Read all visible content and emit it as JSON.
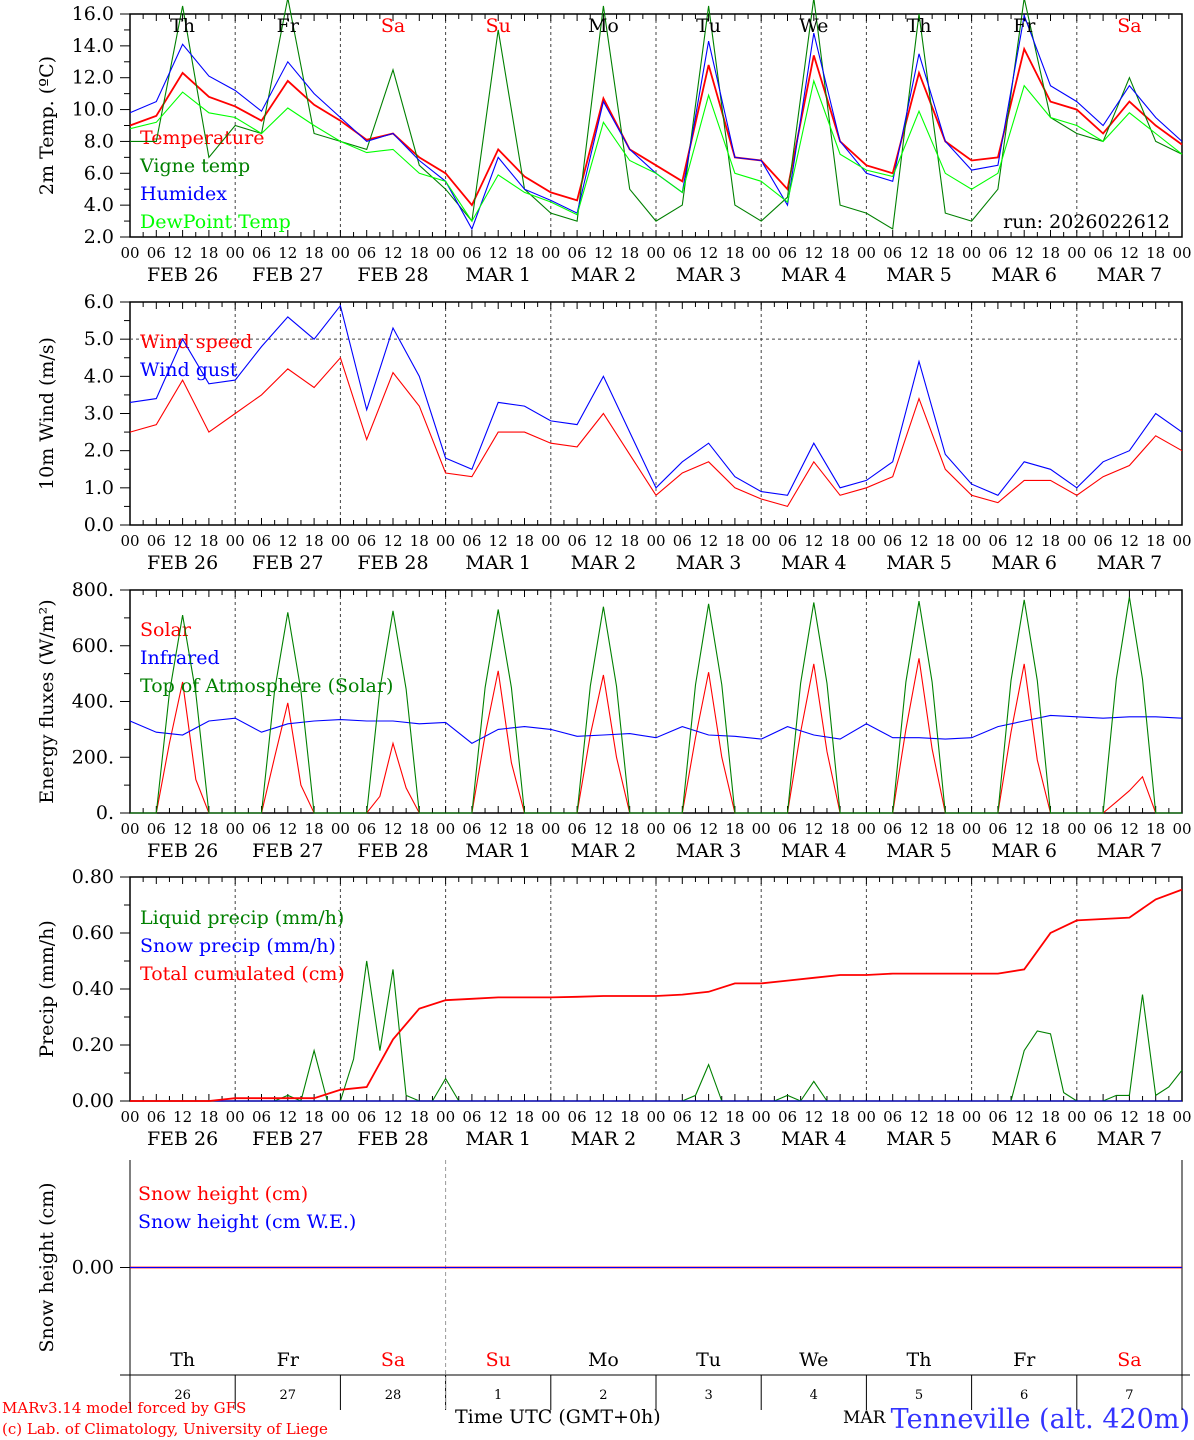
{
  "chart_data": [
    {
      "type": "line",
      "id": "temp",
      "ylabel": "2m Temp. (ºC)",
      "ylim": [
        2,
        16
      ],
      "yticks": [
        2,
        4,
        6,
        8,
        10,
        12,
        14,
        16
      ],
      "ytick_labels": [
        "2.0",
        "4.0",
        "6.0",
        "8.0",
        "10.0",
        "12.0",
        "14.0",
        "16.0"
      ],
      "annotation": "run: 2026022612",
      "series": [
        {
          "name": "Temperature",
          "color": "#ff0000",
          "step_h": 6,
          "values": [
            9.0,
            9.6,
            12.3,
            10.8,
            10.2,
            9.3,
            11.8,
            10.3,
            9.3,
            8.1,
            8.5,
            7.0,
            6.0,
            4.0,
            7.5,
            5.8,
            4.8,
            4.3,
            10.7,
            7.5,
            6.5,
            5.5,
            12.8,
            7.0,
            6.8,
            5.0,
            13.4,
            8.0,
            6.5,
            6.0,
            12.3,
            8.0,
            6.8,
            7.0,
            13.8,
            10.5,
            10.0,
            8.5,
            10.5,
            9.0,
            7.8
          ]
        },
        {
          "name": "Vigne temp",
          "color": "#008000",
          "step_h": 6,
          "values": [
            8.0,
            8.0,
            16.5,
            7.0,
            9.0,
            8.5,
            17.0,
            8.5,
            8.0,
            7.5,
            12.5,
            6.5,
            5.0,
            3.0,
            15.0,
            5.0,
            3.5,
            3.0,
            16.5,
            5.0,
            3.0,
            4.0,
            16.5,
            4.0,
            3.0,
            4.5,
            17.0,
            4.0,
            3.5,
            2.5,
            16.0,
            3.5,
            3.0,
            5.0,
            17.0,
            9.5,
            8.5,
            8.0,
            12.0,
            8.0,
            7.2
          ]
        },
        {
          "name": "Humidex",
          "color": "#0000ff",
          "step_h": 6,
          "values": [
            9.8,
            10.5,
            14.1,
            12.1,
            11.2,
            9.9,
            13.0,
            11.0,
            9.5,
            8.0,
            8.5,
            6.8,
            5.5,
            2.5,
            7.0,
            5.0,
            4.3,
            3.5,
            10.5,
            7.5,
            6.0,
            4.8,
            14.3,
            7.0,
            6.8,
            4.0,
            14.8,
            8.0,
            6.0,
            5.5,
            13.5,
            8.0,
            6.2,
            6.5,
            15.9,
            11.5,
            10.5,
            9.0,
            11.5,
            9.5,
            8.0
          ]
        },
        {
          "name": "DewPoint Temp",
          "color": "#00ff00",
          "step_h": 6,
          "values": [
            8.8,
            9.2,
            11.1,
            9.8,
            9.5,
            8.5,
            10.1,
            9.0,
            8.0,
            7.3,
            7.5,
            6.0,
            5.5,
            3.0,
            5.9,
            4.8,
            4.2,
            3.4,
            9.2,
            6.8,
            6.0,
            4.8,
            10.9,
            6.0,
            5.5,
            4.2,
            11.8,
            7.2,
            6.2,
            5.8,
            9.9,
            6.0,
            5.0,
            6.0,
            11.5,
            9.5,
            9.0,
            8.0,
            9.8,
            8.5,
            7.2
          ]
        }
      ]
    },
    {
      "type": "line",
      "id": "wind",
      "ylabel": "10m Wind (m/s)",
      "ylim": [
        0,
        6
      ],
      "yticks": [
        0,
        1,
        2,
        3,
        4,
        5,
        6
      ],
      "ytick_labels": [
        "0.0",
        "1.0",
        "2.0",
        "3.0",
        "4.0",
        "5.0",
        "6.0"
      ],
      "reference_line": 5.0,
      "series": [
        {
          "name": "Wind speed",
          "color": "#ff0000",
          "step_h": 6,
          "values": [
            2.5,
            2.7,
            3.9,
            2.5,
            3.0,
            3.5,
            4.2,
            3.7,
            4.5,
            2.3,
            4.1,
            3.2,
            1.4,
            1.3,
            2.5,
            2.5,
            2.2,
            2.1,
            3.0,
            1.9,
            0.8,
            1.4,
            1.7,
            1.0,
            0.7,
            0.5,
            1.7,
            0.8,
            1.0,
            1.3,
            3.4,
            1.5,
            0.8,
            0.6,
            1.2,
            1.2,
            0.8,
            1.3,
            1.6,
            2.4,
            2.0
          ]
        },
        {
          "name": "Wind gust",
          "color": "#0000ff",
          "step_h": 6,
          "values": [
            3.3,
            3.4,
            5.0,
            3.8,
            3.9,
            4.8,
            5.6,
            5.0,
            5.9,
            3.1,
            5.3,
            4.0,
            1.8,
            1.5,
            3.3,
            3.2,
            2.8,
            2.7,
            4.0,
            2.5,
            1.0,
            1.7,
            2.2,
            1.3,
            0.9,
            0.8,
            2.2,
            1.0,
            1.2,
            1.7,
            4.4,
            1.9,
            1.1,
            0.8,
            1.7,
            1.5,
            1.0,
            1.7,
            2.0,
            3.0,
            2.5
          ]
        }
      ]
    },
    {
      "type": "line",
      "id": "flux",
      "ylabel": "Energy fluxes (W/m²)",
      "ylim": [
        0,
        800
      ],
      "yticks": [
        0,
        200,
        400,
        600,
        800
      ],
      "ytick_labels": [
        "0.",
        "200.",
        "400.",
        "600.",
        "800."
      ],
      "series": [
        {
          "name": "Solar",
          "color": "#ff0000",
          "step_h": 3,
          "values": [
            0,
            0,
            0,
            250,
            470,
            120,
            0,
            0,
            0,
            0,
            0,
            200,
            395,
            100,
            0,
            0,
            0,
            0,
            0,
            60,
            250,
            90,
            0,
            0,
            0,
            0,
            0,
            280,
            510,
            180,
            0,
            0,
            0,
            0,
            0,
            280,
            495,
            200,
            0,
            0,
            0,
            0,
            0,
            270,
            505,
            200,
            0,
            0,
            0,
            0,
            0,
            290,
            535,
            220,
            0,
            0,
            0,
            0,
            0,
            300,
            555,
            230,
            0,
            0,
            0,
            0,
            0,
            290,
            535,
            190,
            0,
            0,
            0,
            0,
            0,
            40,
            80,
            130,
            0,
            0,
            0
          ]
        },
        {
          "name": "Infrared",
          "color": "#0000ff",
          "step_h": 6,
          "values": [
            330,
            290,
            280,
            330,
            340,
            290,
            320,
            330,
            335,
            330,
            330,
            320,
            325,
            250,
            300,
            310,
            300,
            275,
            280,
            285,
            270,
            310,
            280,
            275,
            265,
            310,
            280,
            265,
            320,
            270,
            270,
            265,
            270,
            310,
            330,
            350,
            345,
            340,
            345,
            345,
            340
          ]
        },
        {
          "name": "Top of Atmosphere (Solar)",
          "color": "#008000",
          "step_h": 3,
          "values": [
            0,
            0,
            0,
            430,
            710,
            430,
            0,
            0,
            0,
            0,
            0,
            440,
            720,
            440,
            0,
            0,
            0,
            0,
            0,
            445,
            725,
            445,
            0,
            0,
            0,
            0,
            0,
            450,
            730,
            450,
            0,
            0,
            0,
            0,
            0,
            455,
            740,
            455,
            0,
            0,
            0,
            0,
            0,
            460,
            750,
            460,
            0,
            0,
            0,
            0,
            0,
            465,
            755,
            465,
            0,
            0,
            0,
            0,
            0,
            470,
            760,
            470,
            0,
            0,
            0,
            0,
            0,
            475,
            765,
            475,
            0,
            0,
            0,
            0,
            0,
            480,
            775,
            480,
            0,
            0,
            0
          ]
        }
      ]
    },
    {
      "type": "line",
      "id": "precip",
      "ylabel": "Precip (mm/h)",
      "ylim": [
        0,
        0.8
      ],
      "yticks": [
        0,
        0.2,
        0.4,
        0.6,
        0.8
      ],
      "ytick_labels": [
        "0.00",
        "0.20",
        "0.40",
        "0.60",
        "0.80"
      ],
      "series": [
        {
          "name": "Liquid precip (mm/h)",
          "color": "#008000",
          "step_h": 3,
          "values": [
            0,
            0,
            0,
            0,
            0,
            0,
            0,
            0,
            0,
            0,
            0,
            0,
            0.02,
            0,
            0.18,
            0,
            0,
            0.15,
            0.5,
            0.18,
            0.47,
            0.02,
            0,
            0,
            0.08,
            0,
            0,
            0,
            0,
            0,
            0,
            0,
            0,
            0,
            0,
            0,
            0,
            0,
            0,
            0,
            0,
            0,
            0,
            0.02,
            0.13,
            0,
            0,
            0,
            0,
            0,
            0.02,
            0,
            0.07,
            0,
            0,
            0,
            0,
            0,
            0,
            0,
            0,
            0,
            0,
            0,
            0,
            0,
            0,
            0,
            0.18,
            0.25,
            0.24,
            0.03,
            0,
            0,
            0,
            0.02,
            0.02,
            0.38,
            0.02,
            0.05,
            0.11
          ]
        },
        {
          "name": "Snow precip (mm/h)",
          "color": "#0000ff",
          "step_h": 24,
          "values": [
            0,
            0,
            0,
            0,
            0,
            0,
            0,
            0,
            0,
            0,
            0
          ]
        },
        {
          "name": "Total cumulated (cm)",
          "color": "#ff0000",
          "step_h": 6,
          "values": [
            0,
            0,
            0,
            0,
            0.01,
            0.01,
            0.01,
            0.01,
            0.04,
            0.05,
            0.22,
            0.33,
            0.36,
            0.365,
            0.37,
            0.37,
            0.37,
            0.372,
            0.375,
            0.375,
            0.375,
            0.38,
            0.39,
            0.42,
            0.42,
            0.43,
            0.44,
            0.45,
            0.45,
            0.455,
            0.455,
            0.455,
            0.455,
            0.455,
            0.47,
            0.6,
            0.645,
            0.65,
            0.655,
            0.72,
            0.755
          ]
        }
      ]
    },
    {
      "type": "line",
      "id": "snow",
      "ylabel": "Snow height (cm)",
      "ylim": [
        -1,
        1
      ],
      "yticks": [
        0
      ],
      "ytick_labels": [
        "0.00"
      ],
      "series": [
        {
          "name": "Snow height (cm)",
          "color": "#ff0000",
          "step_h": 24,
          "values": [
            0,
            0,
            0,
            0,
            0,
            0,
            0,
            0,
            0,
            0,
            0
          ]
        },
        {
          "name": "Snow height (cm W.E.)",
          "color": "#0000ff",
          "step_h": 24,
          "values": [
            0,
            0,
            0,
            0,
            0,
            0,
            0,
            0,
            0,
            0,
            0
          ]
        }
      ]
    }
  ],
  "x_axis": {
    "hour_labels": [
      "00",
      "06",
      "12",
      "18"
    ],
    "dates": [
      "FEB 26",
      "FEB 27",
      "FEB 28",
      "MAR  1",
      "MAR  2",
      "MAR  3",
      "MAR  4",
      "MAR  5",
      "MAR  6",
      "MAR  7"
    ],
    "final_hour_label": "00",
    "day_names": [
      "Th",
      "Fr",
      "Sa",
      "Su",
      "Mo",
      "Tu",
      "We",
      "Th",
      "Fr",
      "Sa"
    ],
    "weekend_flags": [
      false,
      false,
      true,
      true,
      false,
      false,
      false,
      false,
      false,
      true
    ],
    "day_numbers": [
      "26",
      "27",
      "28",
      "1",
      "2",
      "3",
      "4",
      "5",
      "6",
      "7"
    ],
    "month_label": "MAR",
    "title": "Time UTC (GMT+0h)"
  },
  "colors": {
    "weekday": "#000000",
    "weekend": "#ff0000",
    "footer": "#ff0000",
    "station": "#3333ff"
  },
  "footer": {
    "model": "MARv3.14 model forced by GFS",
    "credit": "(c) Lab. of Climatology, University of Liege",
    "station": "Tenneville (alt. 420m)"
  }
}
